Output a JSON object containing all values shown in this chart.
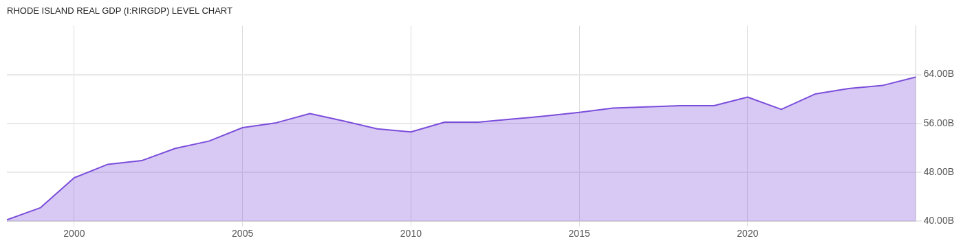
{
  "chart_data": {
    "type": "area",
    "title": "RHODE ISLAND REAL GDP (I:RIRGDP) LEVEL CHART",
    "x": [
      1998,
      1999,
      2000,
      2001,
      2002,
      2003,
      2004,
      2005,
      2006,
      2007,
      2008,
      2009,
      2010,
      2011,
      2012,
      2013,
      2014,
      2015,
      2016,
      2017,
      2018,
      2019,
      2020,
      2021,
      2022,
      2023,
      2024,
      2025
    ],
    "series": [
      {
        "color": "#7b4ddb",
        "values": [
          40.2,
          42.2,
          47.1,
          49.3,
          49.9,
          51.9,
          53.1,
          55.3,
          56.1,
          57.6,
          56.4,
          55.1,
          54.6,
          56.2,
          56.2,
          56.7,
          57.2,
          57.8,
          58.5,
          58.7,
          58.9,
          58.9,
          60.3,
          58.3,
          60.8,
          61.7,
          62.2,
          63.6
        ]
      }
    ],
    "xlim": [
      1998,
      2025
    ],
    "xticks": [
      2000,
      2005,
      2010,
      2015,
      2020
    ],
    "ylim": [
      40,
      72
    ],
    "yticks": [
      {
        "value": 40,
        "label": "40.00B"
      },
      {
        "value": 48,
        "label": "48.00B"
      },
      {
        "value": 56,
        "label": "56.00B"
      },
      {
        "value": 64,
        "label": "64.00B"
      }
    ],
    "grid": true,
    "legend": false,
    "marker": "none"
  }
}
